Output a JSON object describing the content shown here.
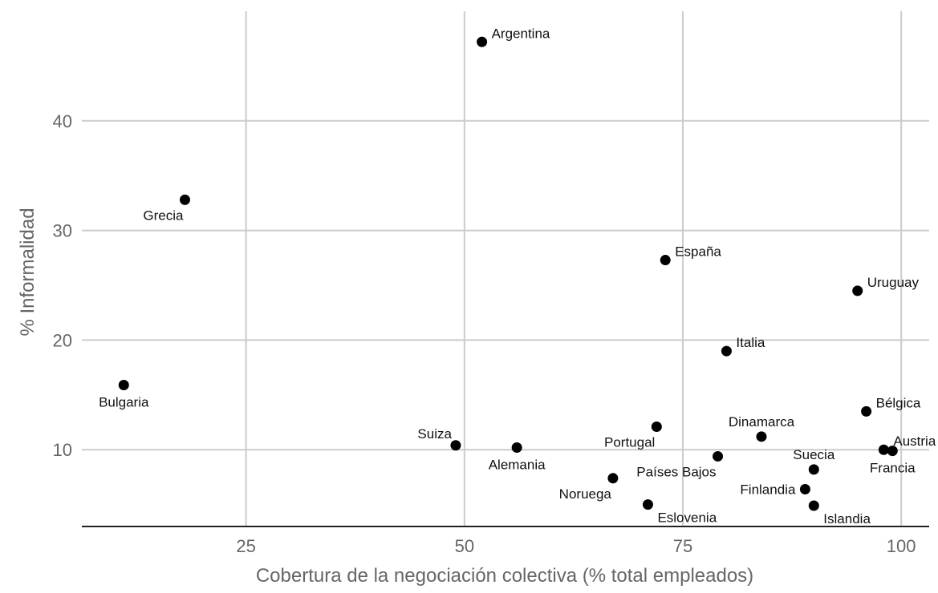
{
  "chart_data": {
    "type": "scatter",
    "xlabel": "Cobertura de la negociación colectiva (% total empleados)",
    "ylabel": "% Informalidad",
    "xlim": [
      6.2,
      103.2
    ],
    "ylim": [
      3.0,
      50.0
    ],
    "xticks": [
      25,
      50,
      75,
      100
    ],
    "yticks": [
      10,
      20,
      30,
      40
    ],
    "grid": true,
    "colors": {
      "point": "#000000",
      "grid": "#cccccc",
      "axis": "#222222",
      "tick_text": "#666666"
    },
    "points": [
      {
        "label": "Argentina",
        "x": 52.0,
        "y": 47.2,
        "pos": "right-up"
      },
      {
        "label": "Grecia",
        "x": 18.0,
        "y": 32.8,
        "pos": "left-below"
      },
      {
        "label": "España",
        "x": 73.0,
        "y": 27.3,
        "pos": "right-up"
      },
      {
        "label": "Uruguay",
        "x": 95.0,
        "y": 24.5,
        "pos": "right-up"
      },
      {
        "label": "Italia",
        "x": 80.0,
        "y": 19.0,
        "pos": "right-up"
      },
      {
        "label": "Bulgaria",
        "x": 11.0,
        "y": 15.9,
        "pos": "below"
      },
      {
        "label": "Bélgica",
        "x": 96.0,
        "y": 13.5,
        "pos": "right-up"
      },
      {
        "label": "Portugal",
        "x": 72.0,
        "y": 12.1,
        "pos": "left-below"
      },
      {
        "label": "Dinamarca",
        "x": 84.0,
        "y": 11.2,
        "pos": "up"
      },
      {
        "label": "Suiza",
        "x": 49.0,
        "y": 10.4,
        "pos": "left-up"
      },
      {
        "label": "Alemania",
        "x": 56.0,
        "y": 10.2,
        "pos": "below"
      },
      {
        "label": "Austria",
        "x": 98.0,
        "y": 10.0,
        "pos": "right-up"
      },
      {
        "label": "Francia",
        "x": 99.0,
        "y": 9.9,
        "pos": "below"
      },
      {
        "label": "Países Bajos",
        "x": 79.0,
        "y": 9.4,
        "pos": "left-below"
      },
      {
        "label": "Suecia",
        "x": 90.0,
        "y": 8.2,
        "pos": "up"
      },
      {
        "label": "Noruega",
        "x": 67.0,
        "y": 7.4,
        "pos": "left-below"
      },
      {
        "label": "Finlandia",
        "x": 89.0,
        "y": 6.4,
        "pos": "left"
      },
      {
        "label": "Eslovenia",
        "x": 71.0,
        "y": 5.0,
        "pos": "right-below"
      },
      {
        "label": "Islandia",
        "x": 90.0,
        "y": 4.9,
        "pos": "right-below"
      }
    ]
  }
}
